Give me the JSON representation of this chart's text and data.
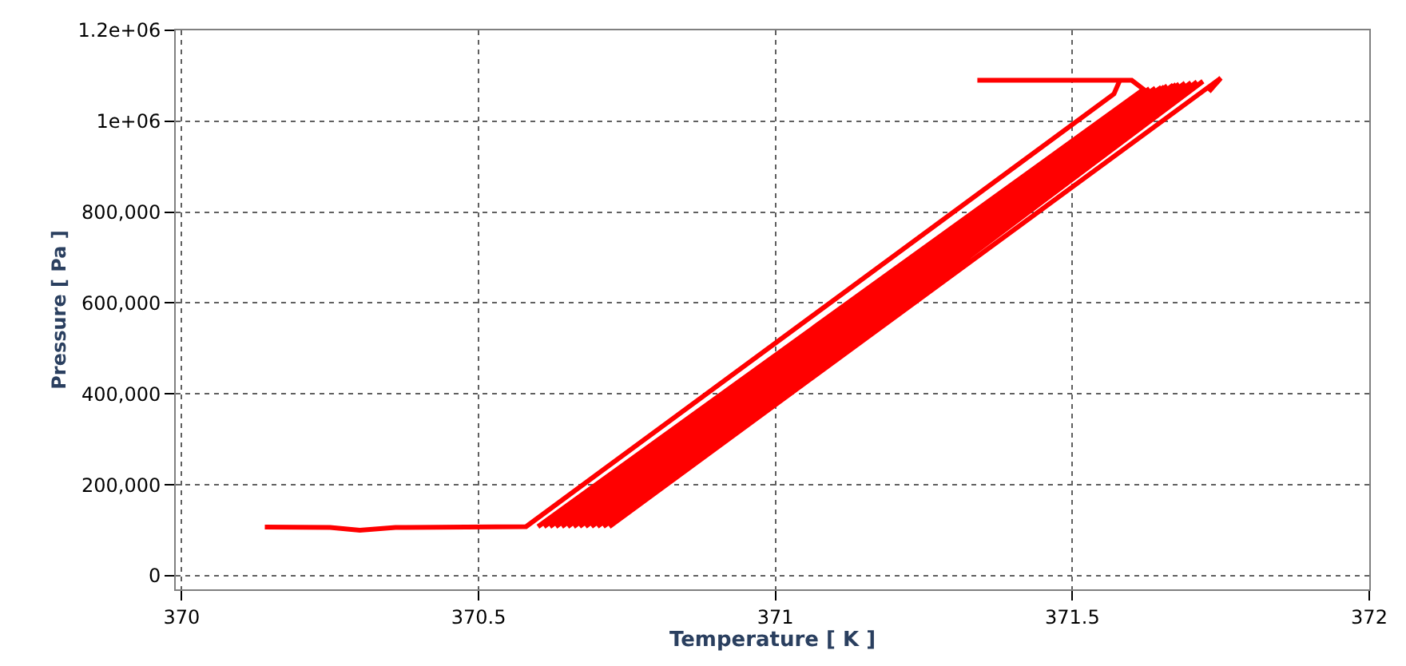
{
  "chart_data": {
    "type": "line",
    "xlabel": "Temperature [ K ]",
    "ylabel": "Pressure [ Pa ]",
    "xlim": [
      369.99,
      372.0
    ],
    "ylim": [
      -30000,
      1200000
    ],
    "xticks": [
      370,
      370.5,
      371,
      371.5,
      372
    ],
    "yticks": [
      0,
      {
        "value": 200000,
        "label": "200,000"
      },
      {
        "value": 400000,
        "label": "400,000"
      },
      {
        "value": 600000,
        "label": "600,000"
      },
      {
        "value": 800000,
        "label": "800,000"
      },
      {
        "value": 1000000,
        "label": "1e+06"
      },
      {
        "value": 1200000,
        "label": "1.2e+06"
      }
    ],
    "grid": true,
    "marker": "none",
    "line_style": "solid",
    "series": [
      {
        "color": "#ff0000",
        "x": [
          370.14,
          370.25,
          370.3,
          370.36,
          370.58,
          371.57,
          371.58,
          371.34,
          371.6,
          371.62,
          370.6,
          371.63,
          370.61,
          371.64,
          370.62,
          371.65,
          370.63,
          371.655,
          370.64,
          371.66,
          370.65,
          371.67,
          370.66,
          371.675,
          370.67,
          371.68,
          370.68,
          371.69,
          370.69,
          371.7,
          370.7,
          371.71,
          370.71,
          371.72,
          370.72,
          371.75,
          371.73
        ],
        "values": [
          107000,
          106000,
          100000,
          106000,
          108000,
          1060000,
          1090000,
          1090000,
          1090000,
          1070000,
          108000,
          1072000,
          108000,
          1073000,
          108000,
          1075000,
          108000,
          1076000,
          108000,
          1078000,
          108000,
          1080000,
          108000,
          1081000,
          108000,
          1082000,
          108000,
          1084000,
          108000,
          1085000,
          108000,
          1087000,
          108000,
          1088000,
          108000,
          1095000,
          1065000
        ]
      }
    ]
  }
}
